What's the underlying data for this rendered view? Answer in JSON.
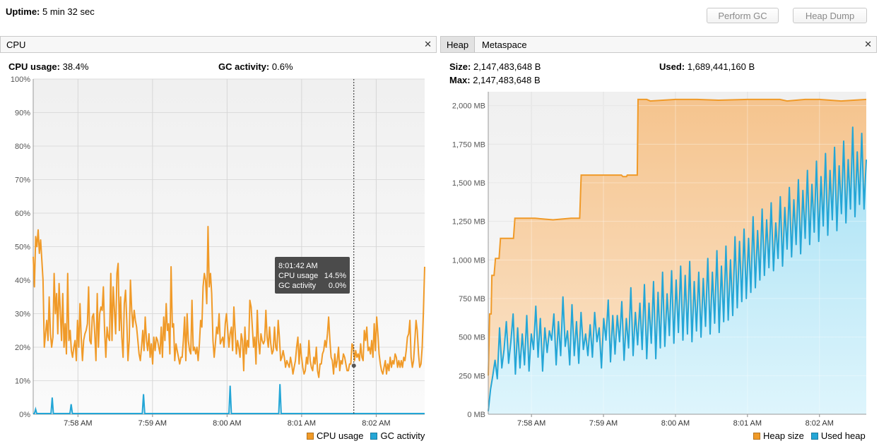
{
  "header": {
    "uptime_label": "Uptime:",
    "uptime_value": "5 min 32 sec",
    "perform_gc_label": "Perform GC",
    "heap_dump_label": "Heap Dump"
  },
  "cpu_panel": {
    "tab_label": "CPU",
    "close_glyph": "✕",
    "cpu_usage_label": "CPU usage:",
    "cpu_usage_value": "38.4%",
    "gc_activity_label": "GC activity:",
    "gc_activity_value": "0.6%",
    "tooltip": {
      "time": "8:01:42 AM",
      "row1_label": "CPU usage",
      "row1_value": "14.5%",
      "row2_label": "GC activity",
      "row2_value": "0.0%"
    },
    "legend": {
      "cpu": "CPU usage",
      "gc": "GC activity"
    }
  },
  "heap_panel": {
    "tab_heap": "Heap",
    "tab_metaspace": "Metaspace",
    "close_glyph": "✕",
    "size_label": "Size:",
    "size_value": "2,147,483,648 B",
    "max_label": "Max:",
    "max_value": "2,147,483,648 B",
    "used_label": "Used:",
    "used_value": "1,689,441,160 B",
    "legend": {
      "heap_size": "Heap size",
      "used_heap": "Used heap"
    }
  },
  "colors": {
    "cpu": "#f09a28",
    "gc": "#24a6d6",
    "heap_size": "#f09a28",
    "used_heap": "#24a6d6"
  },
  "chart_data": [
    {
      "type": "line",
      "name": "cpu-chart",
      "y_ticks": [
        "0%",
        "10%",
        "20%",
        "30%",
        "40%",
        "50%",
        "60%",
        "70%",
        "80%",
        "90%",
        "100%"
      ],
      "x_ticks": [
        "7:58 AM",
        "7:59 AM",
        "8:00 AM",
        "8:01 AM",
        "8:02 AM"
      ],
      "ylim": [
        0,
        100
      ],
      "x_range_minutes": [
        -2.6,
        2.65
      ],
      "x_tick_minutes": [
        -2,
        -1,
        0,
        1,
        2
      ],
      "cursor_minutes": 1.7,
      "series": [
        {
          "name": "CPU usage",
          "values": [
            47,
            38,
            53,
            50,
            55,
            48,
            52,
            46,
            40,
            20,
            24,
            28,
            22,
            35,
            24,
            20,
            23,
            42,
            30,
            36,
            24,
            39,
            31,
            22,
            36,
            20,
            27,
            18,
            42,
            22,
            25,
            19,
            17,
            20,
            22,
            16,
            28,
            20,
            33,
            23,
            16,
            22,
            24,
            25,
            27,
            38,
            22,
            21,
            29,
            30,
            24,
            16,
            36,
            20,
            30,
            32,
            31,
            38,
            25,
            17,
            26,
            23,
            22,
            42,
            22,
            38,
            31,
            24,
            42,
            45,
            25,
            35,
            23,
            17,
            33,
            37,
            28,
            16,
            22,
            40,
            31,
            26,
            31,
            28,
            26,
            22,
            18,
            16,
            20,
            25,
            19,
            29,
            22,
            19,
            24,
            17,
            21,
            15,
            23,
            19,
            23,
            22,
            20,
            18,
            26,
            17,
            29,
            22,
            33,
            25,
            27,
            18,
            44,
            26,
            27,
            16,
            21,
            19,
            17,
            15,
            17,
            17,
            22,
            29,
            16,
            30,
            22,
            19,
            18,
            34,
            19,
            20,
            18,
            20,
            16,
            21,
            28,
            26,
            38,
            42,
            40,
            33,
            56,
            38,
            42,
            36,
            22,
            17,
            21,
            26,
            24,
            30,
            21,
            22,
            23,
            20,
            27,
            30,
            25,
            20,
            24,
            26,
            19,
            32,
            25,
            18,
            22,
            20,
            17,
            24,
            22,
            13,
            26,
            18,
            22,
            20,
            34,
            32,
            26,
            20,
            23,
            15,
            31,
            22,
            18,
            24,
            22,
            21,
            22,
            31,
            23,
            20,
            26,
            21,
            18,
            19,
            26,
            20,
            19,
            28,
            23,
            16,
            17,
            19,
            17,
            14,
            16,
            15,
            14,
            17,
            15,
            12,
            14,
            16,
            20,
            23,
            15,
            21,
            17,
            14,
            12,
            13,
            17,
            15,
            22,
            16,
            14,
            13,
            17,
            15,
            20,
            13,
            11,
            15,
            15,
            18,
            19,
            22,
            20,
            24,
            29,
            22,
            17,
            16,
            12,
            18,
            14,
            16,
            20,
            13,
            16,
            15,
            18,
            17,
            15,
            13,
            13,
            15,
            15,
            21,
            20,
            16,
            19,
            17,
            18,
            16,
            21,
            17,
            16,
            25,
            22,
            26,
            19,
            20,
            18,
            22,
            17,
            27,
            19,
            29,
            24,
            18,
            15,
            13,
            12,
            14,
            16,
            12,
            15,
            13,
            17,
            14,
            16,
            15,
            18,
            17,
            14,
            16,
            14,
            16,
            14,
            17,
            16,
            19,
            23,
            24,
            28,
            17,
            14,
            16,
            22,
            28,
            25,
            18,
            14,
            15,
            20,
            31,
            44
          ]
        },
        {
          "name": "GC activity",
          "values": [
            0,
            0,
            1.5,
            0,
            0,
            0,
            0,
            0,
            0,
            0,
            0,
            0,
            0,
            0,
            0,
            0,
            5,
            0,
            0,
            0,
            0,
            0,
            0,
            0,
            0,
            0,
            0,
            0,
            0,
            0,
            0,
            0,
            3,
            0,
            0,
            0,
            0,
            0,
            0,
            0,
            0,
            0,
            0,
            0,
            0,
            0,
            0,
            0,
            0,
            0,
            0,
            0,
            0,
            0,
            0,
            0,
            0,
            0,
            0,
            0,
            0,
            0,
            0,
            0,
            0,
            0,
            0,
            0,
            0,
            0,
            0,
            0,
            0,
            0,
            0,
            0,
            0,
            0,
            0,
            0,
            0,
            0,
            0,
            0,
            0,
            0,
            0,
            0,
            0,
            0,
            0,
            0,
            0,
            6,
            0,
            0,
            0,
            0,
            0,
            0,
            0,
            0,
            0,
            0,
            0,
            0,
            0,
            0,
            0,
            0,
            0,
            0,
            0,
            0,
            0,
            0,
            0,
            0,
            0,
            0,
            0,
            0,
            0,
            0,
            0,
            0,
            0,
            0,
            0,
            0,
            0,
            0,
            0,
            0,
            0,
            0,
            0,
            0,
            0,
            0,
            0,
            0,
            0,
            0,
            0,
            0,
            0,
            0,
            0,
            0,
            0,
            0,
            0,
            0,
            0,
            0,
            0,
            0,
            0,
            0,
            0,
            0,
            0,
            0,
            0,
            0,
            8.5,
            0,
            0,
            0,
            0,
            0,
            0,
            0,
            0,
            0,
            0,
            0,
            0,
            0,
            0,
            0,
            0,
            0,
            0,
            0,
            0,
            0,
            0,
            0,
            0,
            0,
            0,
            0,
            0,
            0,
            0,
            0,
            0,
            0,
            0,
            0,
            0,
            0,
            0,
            0,
            0,
            0,
            9,
            0,
            0,
            0,
            0,
            0,
            0,
            0,
            0,
            0,
            0,
            0,
            0,
            0,
            0,
            0,
            0,
            0,
            0,
            0,
            0,
            0,
            0,
            0,
            0,
            0,
            0,
            0,
            0,
            0,
            0,
            0,
            0,
            0,
            0,
            0,
            0,
            0,
            0,
            0,
            0,
            0,
            0,
            0,
            0,
            0,
            0,
            0,
            0,
            0,
            0,
            0,
            0,
            0,
            0,
            0,
            0,
            0,
            0,
            0,
            0,
            0,
            0,
            0,
            0,
            0,
            0,
            0,
            0,
            0,
            0,
            0,
            0,
            0,
            0,
            0,
            0,
            0,
            0,
            0,
            0,
            0,
            0,
            0,
            0,
            0,
            0,
            0,
            0,
            0,
            0,
            0,
            0,
            0,
            0,
            0,
            0,
            0,
            0,
            0,
            0,
            0,
            0,
            0,
            0,
            0,
            0,
            0,
            0,
            0,
            0,
            0,
            0,
            0,
            0,
            0,
            0,
            0,
            0,
            0,
            0,
            0,
            0
          ]
        }
      ]
    },
    {
      "type": "area",
      "name": "heap-chart",
      "y_ticks": [
        "0 MB",
        "250 MB",
        "500 MB",
        "750 MB",
        "1,000 MB",
        "1,250 MB",
        "1,500 MB",
        "1,750 MB",
        "2,000 MB"
      ],
      "y_tick_values": [
        0,
        250,
        500,
        750,
        1000,
        1250,
        1500,
        1750,
        2000
      ],
      "x_ticks": [
        "7:58 AM",
        "7:59 AM",
        "8:00 AM",
        "8:01 AM",
        "8:02 AM"
      ],
      "x_tick_minutes": [
        -2,
        -1,
        0,
        1,
        2
      ],
      "x_range_minutes": [
        -2.6,
        2.65
      ],
      "ylim": [
        0,
        2000
      ],
      "series": [
        {
          "name": "Heap size",
          "points": [
            [
              -2.6,
              250
            ],
            [
              -2.58,
              650
            ],
            [
              -2.56,
              650
            ],
            [
              -2.55,
              900
            ],
            [
              -2.52,
              900
            ],
            [
              -2.5,
              1010
            ],
            [
              -2.45,
              1010
            ],
            [
              -2.43,
              1140
            ],
            [
              -2.25,
              1140
            ],
            [
              -2.23,
              1270
            ],
            [
              -1.95,
              1270
            ],
            [
              -1.7,
              1260
            ],
            [
              -1.45,
              1270
            ],
            [
              -1.33,
              1270
            ],
            [
              -1.31,
              1550
            ],
            [
              -0.8,
              1550
            ],
            [
              -0.75,
              1550
            ],
            [
              -0.73,
              1540
            ],
            [
              -0.68,
              1540
            ],
            [
              -0.67,
              1550
            ],
            [
              -0.55,
              1550
            ],
            [
              -0.53,
              1550
            ],
            [
              -0.52,
              2040
            ],
            [
              -0.4,
              2040
            ],
            [
              -0.35,
              2030
            ],
            [
              0.0,
              2040
            ],
            [
              0.3,
              2040
            ],
            [
              0.6,
              2035
            ],
            [
              1.0,
              2040
            ],
            [
              1.45,
              2040
            ],
            [
              1.55,
              2030
            ],
            [
              1.8,
              2040
            ],
            [
              2.0,
              2040
            ],
            [
              2.3,
              2030
            ],
            [
              2.65,
              2040
            ]
          ]
        },
        {
          "name": "Used heap",
          "values": [
            20,
            160,
            250,
            350,
            230,
            560,
            300,
            420,
            600,
            330,
            470,
            650,
            260,
            560,
            300,
            520,
            320,
            640,
            280,
            520,
            420,
            700,
            370,
            620,
            280,
            560,
            400,
            540,
            480,
            650,
            320,
            600,
            380,
            760,
            440,
            540,
            320,
            710,
            380,
            600,
            330,
            660,
            420,
            520,
            380,
            580,
            370,
            660,
            470,
            560,
            300,
            620,
            480,
            740,
            340,
            640,
            390,
            640,
            470,
            730,
            350,
            620,
            430,
            820,
            380,
            660,
            450,
            720,
            420,
            840,
            360,
            720,
            460,
            860,
            360,
            790,
            430,
            920,
            440,
            780,
            510,
            930,
            460,
            870,
            530,
            960,
            480,
            900,
            520,
            990,
            470,
            860,
            540,
            920,
            500,
            880,
            570,
            1010,
            520,
            920,
            590,
            1060,
            530,
            960,
            600,
            1090,
            610,
            1000,
            640,
            1150,
            690,
            1120,
            730,
            1200,
            750,
            1140,
            790,
            1280,
            820,
            1190,
            870,
            1330,
            900,
            1260,
            950,
            1370,
            930,
            1240,
            1010,
            1410,
            960,
            1340,
            1070,
            1470,
            1020,
            1390,
            1100,
            1520,
            1040,
            1450,
            1140,
            1580,
            1100,
            1490,
            1180,
            1640,
            1120,
            1540,
            1220,
            1690,
            1160,
            1580,
            1260,
            1730,
            1190,
            1610,
            1300,
            1770,
            1240,
            1650,
            1330,
            1860,
            1280,
            1700,
            1360,
            1820,
            1330,
            1650
          ]
        }
      ]
    }
  ]
}
